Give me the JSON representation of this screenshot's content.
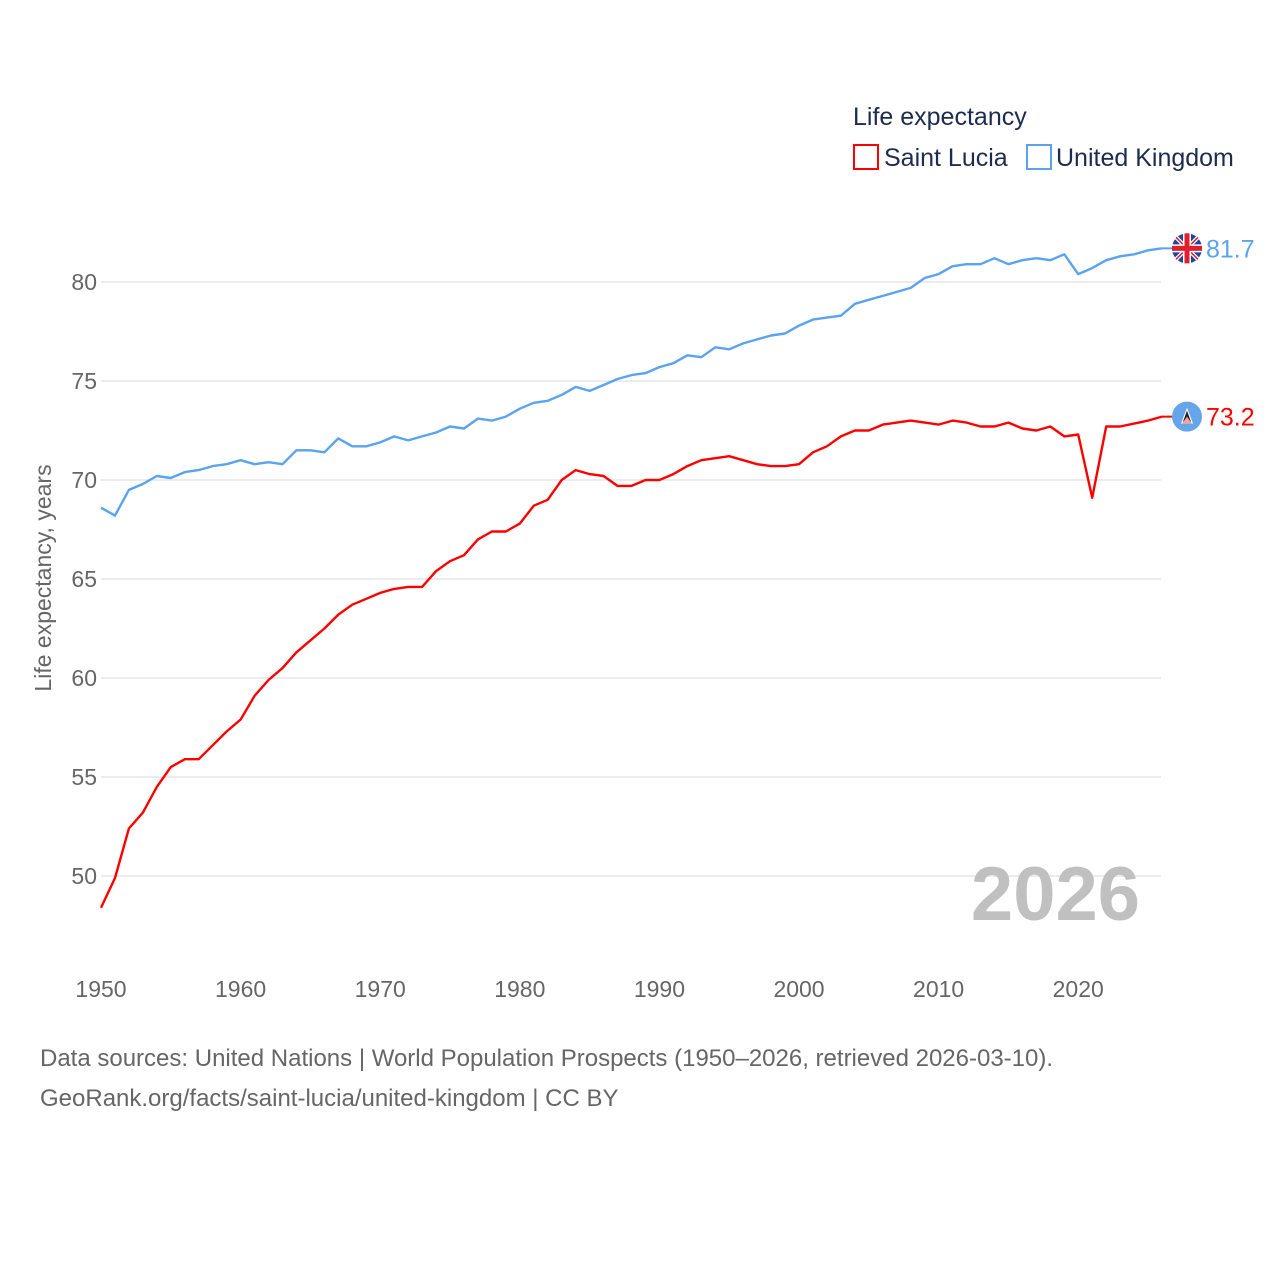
{
  "chart_data": {
    "type": "line",
    "title": "Life expectancy",
    "xlabel": "",
    "ylabel": "Life expectancy, years",
    "xlim": [
      1950,
      2026
    ],
    "ylim": [
      47.5,
      84
    ],
    "yticks": [
      50,
      55,
      60,
      65,
      70,
      75,
      80
    ],
    "xticks": [
      1950,
      1960,
      1970,
      1980,
      1990,
      2000,
      2010,
      2020
    ],
    "grid": true,
    "legend_position": "top-right",
    "year_watermark": "2026",
    "x": [
      1950,
      1951,
      1952,
      1953,
      1954,
      1955,
      1956,
      1957,
      1958,
      1959,
      1960,
      1961,
      1962,
      1963,
      1964,
      1965,
      1966,
      1967,
      1968,
      1969,
      1970,
      1971,
      1972,
      1973,
      1974,
      1975,
      1976,
      1977,
      1978,
      1979,
      1980,
      1981,
      1982,
      1983,
      1984,
      1985,
      1986,
      1987,
      1988,
      1989,
      1990,
      1991,
      1992,
      1993,
      1994,
      1995,
      1996,
      1997,
      1998,
      1999,
      2000,
      2001,
      2002,
      2003,
      2004,
      2005,
      2006,
      2007,
      2008,
      2009,
      2010,
      2011,
      2012,
      2013,
      2014,
      2015,
      2016,
      2017,
      2018,
      2019,
      2020,
      2021,
      2022,
      2023,
      2024,
      2025,
      2026
    ],
    "series": [
      {
        "name": "Saint Lucia",
        "color": "#ff0000",
        "end_label": "73.2",
        "flag": "saint-lucia-flag",
        "values": [
          48.4,
          49.9,
          52.4,
          53.2,
          54.5,
          55.5,
          55.9,
          55.9,
          56.6,
          57.3,
          57.9,
          59.1,
          59.9,
          60.5,
          61.3,
          61.9,
          62.5,
          63.2,
          63.7,
          64.0,
          64.3,
          64.5,
          64.6,
          64.6,
          65.4,
          65.9,
          66.2,
          67.0,
          67.4,
          67.4,
          67.8,
          68.7,
          69.0,
          70.0,
          70.5,
          70.3,
          70.2,
          69.7,
          69.7,
          70.0,
          70.0,
          70.3,
          70.7,
          71.0,
          71.1,
          71.2,
          71.0,
          70.8,
          70.7,
          70.7,
          70.8,
          71.4,
          71.7,
          72.2,
          72.5,
          72.5,
          72.8,
          72.9,
          73.0,
          72.9,
          72.8,
          73.0,
          72.9,
          72.7,
          72.7,
          72.9,
          72.6,
          72.5,
          72.7,
          72.2,
          72.3,
          69.1,
          72.7,
          72.7,
          72.85,
          73.0,
          73.2
        ]
      },
      {
        "name": "United Kingdom",
        "color": "#5ba3ef",
        "end_label": "81.7",
        "flag": "united-kingdom-flag",
        "values": [
          68.6,
          68.2,
          69.5,
          69.8,
          70.2,
          70.1,
          70.4,
          70.5,
          70.7,
          70.8,
          71.0,
          70.8,
          70.9,
          70.8,
          71.5,
          71.5,
          71.4,
          72.1,
          71.7,
          71.7,
          71.9,
          72.2,
          72.0,
          72.2,
          72.4,
          72.7,
          72.6,
          73.1,
          73.0,
          73.2,
          73.6,
          73.9,
          74.0,
          74.3,
          74.7,
          74.5,
          74.8,
          75.1,
          75.3,
          75.4,
          75.7,
          75.9,
          76.3,
          76.2,
          76.7,
          76.6,
          76.9,
          77.1,
          77.3,
          77.4,
          77.8,
          78.1,
          78.2,
          78.3,
          78.9,
          79.1,
          79.3,
          79.5,
          79.7,
          80.2,
          80.4,
          80.8,
          80.9,
          80.9,
          81.2,
          80.9,
          81.1,
          81.2,
          81.1,
          81.4,
          80.4,
          80.7,
          81.1,
          81.3,
          81.4,
          81.6,
          81.7
        ]
      }
    ]
  },
  "footer": {
    "line1": "Data sources: United Nations | World Population Prospects (1950–2026, retrieved 2026-03-10).",
    "line2": "GeoRank.org/facts/saint-lucia/united-kingdom | CC BY"
  }
}
